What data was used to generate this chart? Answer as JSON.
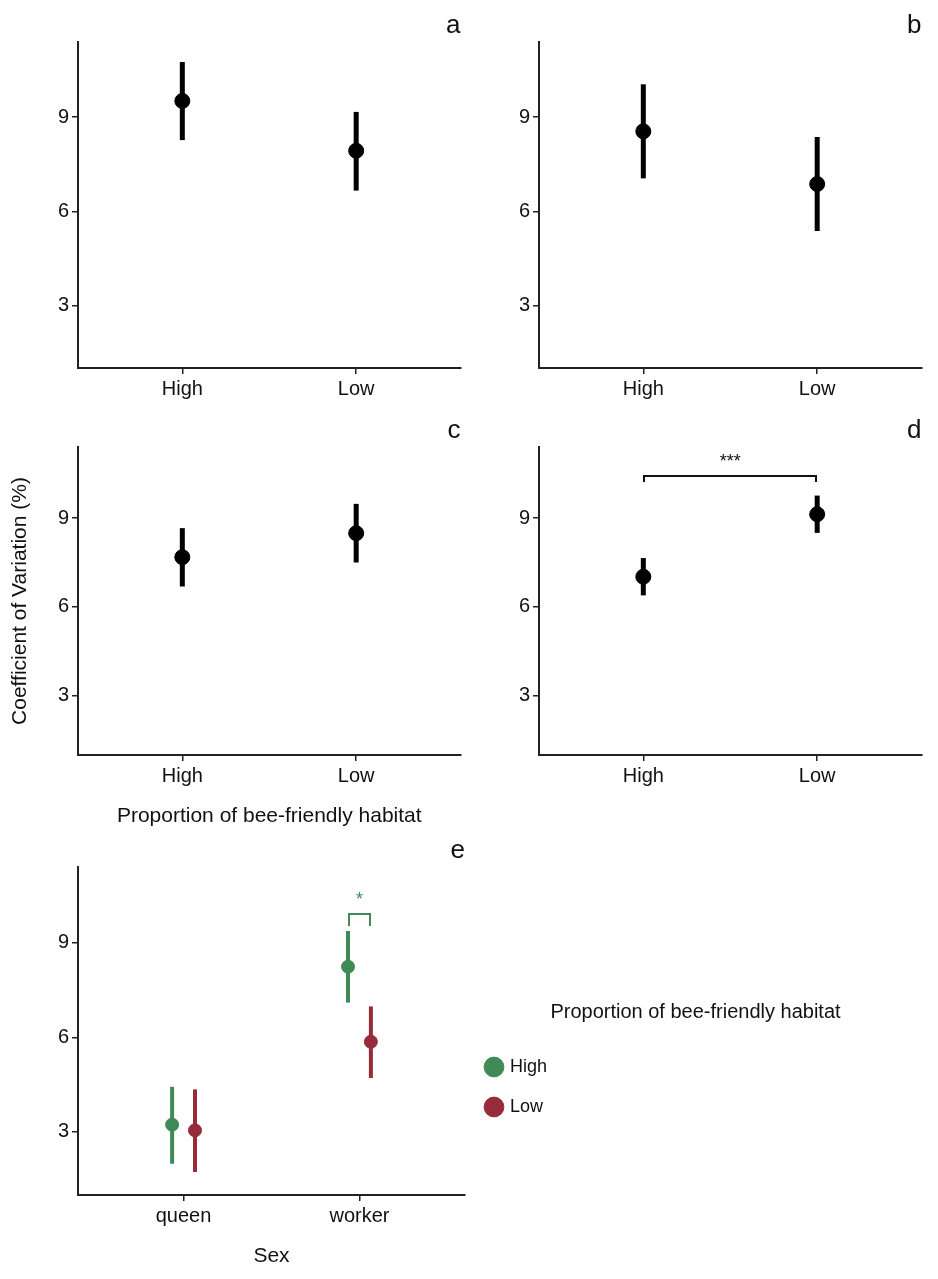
{
  "chart_data": [
    {
      "type": "scatter",
      "title": "a",
      "categories": [
        "High",
        "Low"
      ],
      "values": [
        9.52,
        7.93
      ],
      "errors": [
        [
          8.27,
          10.76
        ],
        [
          6.66,
          9.17
        ]
      ],
      "color": "#000000",
      "marker": "circle",
      "ylim": [
        1,
        11.4
      ],
      "yticks": [
        3,
        6,
        9
      ],
      "grid": false
    },
    {
      "type": "scatter",
      "title": "b",
      "categories": [
        "High",
        "Low"
      ],
      "values": [
        8.55,
        6.87
      ],
      "errors": [
        [
          7.05,
          10.05
        ],
        [
          5.37,
          8.37
        ]
      ],
      "color": "#000000",
      "marker": "circle",
      "ylim": [
        1,
        11.4
      ],
      "yticks": [
        3,
        6,
        9
      ],
      "grid": false
    },
    {
      "type": "scatter",
      "title": "c",
      "ylabel": "Coefficient of Variation (%)",
      "xlabel": "Proportion of bee-friendly habitat",
      "categories": [
        "High",
        "Low"
      ],
      "values": [
        7.68,
        8.49
      ],
      "errors": [
        [
          6.69,
          8.66
        ],
        [
          7.5,
          9.48
        ]
      ],
      "color": "#000000",
      "marker": "circle",
      "ylim": [
        1,
        11.4
      ],
      "yticks": [
        3,
        6,
        9
      ],
      "grid": false
    },
    {
      "type": "scatter",
      "title": "d",
      "categories": [
        "High",
        "Low"
      ],
      "values": [
        7.02,
        9.13
      ],
      "errors": [
        [
          6.39,
          7.65
        ],
        [
          8.5,
          9.76
        ]
      ],
      "color": "#000000",
      "marker": "circle",
      "ylim": [
        1,
        11.4
      ],
      "yticks": [
        3,
        6,
        9
      ],
      "grid": false,
      "annotations": [
        "***"
      ]
    },
    {
      "type": "scatter",
      "title": "e",
      "xlabel": "Sex",
      "legend_title": "Proportion of bee-friendly habitat",
      "categories": [
        "queen",
        "worker"
      ],
      "marker": "circle",
      "ylim": [
        1,
        11.4
      ],
      "yticks": [
        3,
        6,
        9
      ],
      "grid": false,
      "legend": "right",
      "series": [
        {
          "name": "High",
          "color": "#3f8a57",
          "values": [
            3.23,
            8.24
          ],
          "errors": [
            [
              1.99,
              4.43
            ],
            [
              7.1,
              9.37
            ]
          ]
        },
        {
          "name": "Low",
          "color": "#962c3a",
          "values": [
            3.05,
            5.86
          ],
          "errors": [
            [
              1.73,
              4.35
            ],
            [
              4.71,
              6.98
            ]
          ]
        }
      ],
      "annotations": [
        "*"
      ]
    }
  ]
}
